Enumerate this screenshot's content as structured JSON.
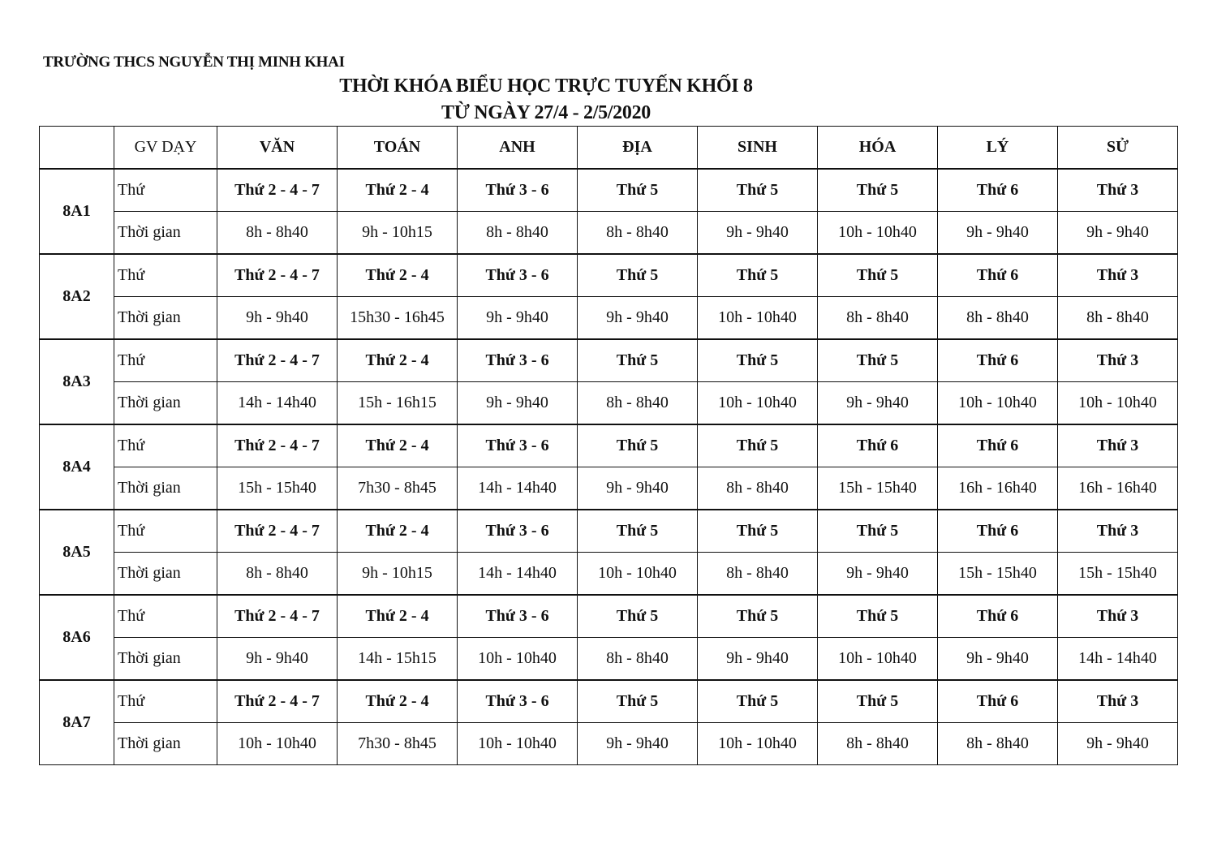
{
  "school": "TRƯỜNG THCS NGUYỄN THỊ MINH KHAI",
  "title": "THỜI KHÓA BIỂU HỌC TRỰC TUYẾN KHỐI 8",
  "subtitle": "TỪ NGÀY 27/4 - 2/5/2020",
  "table": {
    "corner": "",
    "teacher_header": "GV DẠY",
    "subjects": [
      "VĂN",
      "TOÁN",
      "ANH",
      "ĐỊA",
      "SINH",
      "HÓA",
      "LÝ",
      "SỬ"
    ],
    "day_label": "Thứ",
    "time_label": "Thời gian",
    "classes": [
      {
        "name": "8A1",
        "days": [
          "Thứ 2 - 4 - 7",
          "Thứ 2 - 4",
          "Thứ 3 - 6",
          "Thứ 5",
          "Thứ 5",
          "Thứ 5",
          "Thứ 6",
          "Thứ 3"
        ],
        "times": [
          "8h - 8h40",
          "9h - 10h15",
          "8h - 8h40",
          "8h - 8h40",
          "9h - 9h40",
          "10h - 10h40",
          "9h - 9h40",
          "9h - 9h40"
        ]
      },
      {
        "name": "8A2",
        "days": [
          "Thứ 2 - 4 - 7",
          "Thứ 2 - 4",
          "Thứ 3 - 6",
          "Thứ 5",
          "Thứ 5",
          "Thứ 5",
          "Thứ 6",
          "Thứ 3"
        ],
        "times": [
          "9h - 9h40",
          "15h30 - 16h45",
          "9h - 9h40",
          "9h - 9h40",
          "10h - 10h40",
          "8h - 8h40",
          "8h - 8h40",
          "8h - 8h40"
        ]
      },
      {
        "name": "8A3",
        "days": [
          "Thứ 2 - 4 - 7",
          "Thứ 2 - 4",
          "Thứ 3 - 6",
          "Thứ 5",
          "Thứ 5",
          "Thứ 5",
          "Thứ 6",
          "Thứ 3"
        ],
        "times": [
          "14h - 14h40",
          "15h - 16h15",
          "9h - 9h40",
          "8h - 8h40",
          "10h - 10h40",
          "9h - 9h40",
          "10h - 10h40",
          "10h - 10h40"
        ]
      },
      {
        "name": "8A4",
        "days": [
          "Thứ 2 - 4 - 7",
          "Thứ 2 - 4",
          "Thứ 3 - 6",
          "Thứ 5",
          "Thứ 5",
          "Thứ 6",
          "Thứ 6",
          "Thứ 3"
        ],
        "times": [
          "15h - 15h40",
          "7h30 - 8h45",
          "14h - 14h40",
          "9h - 9h40",
          "8h - 8h40",
          "15h - 15h40",
          "16h - 16h40",
          "16h - 16h40"
        ]
      },
      {
        "name": "8A5",
        "days": [
          "Thứ 2 - 4 - 7",
          "Thứ 2 - 4",
          "Thứ 3 - 6",
          "Thứ 5",
          "Thứ 5",
          "Thứ 5",
          "Thứ 6",
          "Thứ 3"
        ],
        "times": [
          "8h - 8h40",
          "9h - 10h15",
          "14h - 14h40",
          "10h - 10h40",
          "8h - 8h40",
          "9h - 9h40",
          "15h - 15h40",
          "15h - 15h40"
        ]
      },
      {
        "name": "8A6",
        "days": [
          "Thứ 2 - 4 - 7",
          "Thứ 2 - 4",
          "Thứ 3 - 6",
          "Thứ 5",
          "Thứ 5",
          "Thứ 5",
          "Thứ 6",
          "Thứ 3"
        ],
        "times": [
          "9h - 9h40",
          "14h - 15h15",
          "10h - 10h40",
          "8h - 8h40",
          "9h - 9h40",
          "10h - 10h40",
          "9h - 9h40",
          "14h - 14h40"
        ]
      },
      {
        "name": "8A7",
        "days": [
          "Thứ 2 - 4 - 7",
          "Thứ 2 - 4",
          "Thứ 3 - 6",
          "Thứ 5",
          "Thứ 5",
          "Thứ 5",
          "Thứ 6",
          "Thứ 3"
        ],
        "times": [
          "10h - 10h40",
          "7h30 - 8h45",
          "10h - 10h40",
          "9h - 9h40",
          "10h - 10h40",
          "8h - 8h40",
          "8h - 8h40",
          "9h - 9h40"
        ]
      }
    ]
  }
}
